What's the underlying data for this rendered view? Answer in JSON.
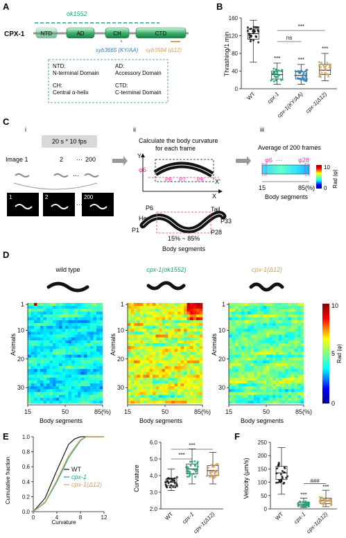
{
  "colors": {
    "wt": "#111111",
    "cpx1": "#1aa37a",
    "ky": "#2a7fb8",
    "d12": "#d1a25a",
    "magenta": "#e2339a",
    "domain_green": "#3bb36d"
  },
  "panels": {
    "A": "A",
    "B": "B",
    "C": "C",
    "D": "D",
    "E": "E",
    "F": "F"
  },
  "panelA": {
    "ok_label": "ok1552",
    "protein": "CPX-1",
    "domains": [
      "NTD",
      "AD",
      "CH",
      "CTD"
    ],
    "syb3665": "syb3665 (KY/AA)",
    "syb3584": "syb3584 (Δ12)",
    "legend": [
      {
        "abbr": "NTD:",
        "desc": "N-terminal Domain"
      },
      {
        "abbr": "AD:",
        "desc": "Accessory Domain"
      },
      {
        "abbr": "CH:",
        "desc": "Central α-helix"
      },
      {
        "abbr": "CTD:",
        "desc": "C-terminal Domain"
      }
    ]
  },
  "panelB": {
    "ylabel": "Thrashing/1 min",
    "yticks": [
      "0",
      "40",
      "80",
      "120",
      "160"
    ],
    "groups": [
      "WT",
      "cpx-1",
      "cpx-1(KY/AA)",
      "cpx-1(Δ12)"
    ],
    "stars": [
      "***",
      "***",
      "***"
    ],
    "ns": "ns",
    "top_star": "***"
  },
  "panelC": {
    "i_label": "i",
    "ii_label": "ii",
    "iii_label": "iii",
    "fps_box": "20 s * 10 fps",
    "image_labels": [
      "Image 1",
      "2",
      "···",
      "200"
    ],
    "frame_nums": [
      "1",
      "2",
      "200"
    ],
    "ii_title": "Calculate the body curvature for each frame",
    "axis_y": "Y",
    "axis_x": "X",
    "axis_xp": "X'",
    "phi6": "φ6",
    "p_labels": [
      "P6",
      "P7",
      "P8"
    ],
    "worm_labels": {
      "head": "Head",
      "tail": "Tail",
      "p1": "P1",
      "p6": "P6",
      "p28": "P28",
      "p33": "P33",
      "range": "15% ~ 85%"
    },
    "body_segments": "Body segments",
    "iii_title": "Average of 200 frames",
    "phi_ends": [
      "φ6",
      "···",
      "φ28"
    ],
    "iii_x": [
      "15",
      "85(%)"
    ],
    "cbar": [
      "10",
      "0"
    ],
    "cbar_label": "Rad (φ)"
  },
  "panelD": {
    "titles": [
      "wild type",
      "cpx-1(ok1552)",
      "cpx-1(Δ12)"
    ],
    "yticks": [
      "1",
      "10",
      "20",
      "30"
    ],
    "xticks": [
      "15",
      "50",
      "85(%)"
    ],
    "ylabel": "Animals",
    "xlabel": "Body segments",
    "cbar": [
      "10",
      "5",
      "0"
    ],
    "cbar_label": "Rad (φ)"
  },
  "panelE": {
    "cdf_ylabel": "Cumulative fraction",
    "cdf_xlabel": "Curvature",
    "cdf_yticks": [
      "1.0",
      "0.8",
      "0.6",
      "0.4",
      "0.2",
      "0.0"
    ],
    "cdf_xticks": [
      "0",
      "4",
      "8",
      "12"
    ],
    "legend": [
      "WT",
      "cpx-1",
      "cpx-1(Δ12)"
    ],
    "box_ylabel": "Curvature",
    "box_yticks": [
      "6.0",
      "5.0",
      "4.0",
      "3.0",
      "2.0"
    ],
    "groups": [
      "WT",
      "cpx-1",
      "cpx-1(Δ12)"
    ],
    "stars": [
      "***",
      "***"
    ]
  },
  "panelF": {
    "ylabel": "Velocity (μm/s)",
    "yticks": [
      "250",
      "200",
      "150",
      "100",
      "50",
      "0"
    ],
    "groups": [
      "WT",
      "cpx-1",
      "cpx-1(Δ12)"
    ],
    "stars": [
      "***",
      "***"
    ],
    "hash": "###"
  },
  "chart_data": [
    {
      "type": "box",
      "title": "",
      "ylabel": "Thrashing/1 min",
      "ylim": [
        0,
        160
      ],
      "categories": [
        "WT",
        "cpx-1",
        "cpx-1(KY/AA)",
        "cpx-1(Δ12)"
      ],
      "series": [
        {
          "median": 125,
          "q1": 112,
          "q3": 135,
          "min": 60,
          "max": 155
        },
        {
          "median": 32,
          "q1": 22,
          "q3": 40,
          "min": 10,
          "max": 58
        },
        {
          "median": 30,
          "q1": 22,
          "q3": 38,
          "min": 10,
          "max": 55
        },
        {
          "median": 42,
          "q1": 32,
          "q3": 55,
          "min": 18,
          "max": 80
        }
      ]
    },
    {
      "type": "line",
      "ylabel": "Cumulative fraction",
      "xlabel": "Curvature",
      "xlim": [
        0,
        12
      ],
      "ylim": [
        0,
        1
      ],
      "series": [
        {
          "name": "WT",
          "x": [
            0,
            2,
            4,
            6,
            7,
            8,
            12
          ],
          "y": [
            0,
            0.18,
            0.55,
            0.9,
            0.97,
            1.0,
            1.0
          ]
        },
        {
          "name": "cpx-1",
          "x": [
            0,
            2,
            4,
            6,
            8,
            9,
            12
          ],
          "y": [
            0,
            0.12,
            0.4,
            0.72,
            0.95,
            1.0,
            1.0
          ]
        },
        {
          "name": "cpx-1(Δ12)",
          "x": [
            0,
            2,
            4,
            6,
            8,
            9,
            12
          ],
          "y": [
            0,
            0.13,
            0.42,
            0.75,
            0.96,
            1.0,
            1.0
          ]
        }
      ]
    },
    {
      "type": "box",
      "ylabel": "Curvature",
      "ylim": [
        2,
        6
      ],
      "categories": [
        "WT",
        "cpx-1",
        "cpx-1(Δ12)"
      ],
      "series": [
        {
          "median": 3.6,
          "q1": 3.4,
          "q3": 3.8,
          "min": 3.1,
          "max": 4.4
        },
        {
          "median": 4.4,
          "q1": 4.1,
          "q3": 4.7,
          "min": 3.5,
          "max": 5.6
        },
        {
          "median": 4.3,
          "q1": 4.0,
          "q3": 4.6,
          "min": 3.5,
          "max": 5.4
        }
      ]
    },
    {
      "type": "box",
      "ylabel": "Velocity (μm/s)",
      "ylim": [
        0,
        250
      ],
      "categories": [
        "WT",
        "cpx-1",
        "cpx-1(Δ12)"
      ],
      "series": [
        {
          "median": 135,
          "q1": 110,
          "q3": 160,
          "min": 55,
          "max": 230
        },
        {
          "median": 18,
          "q1": 12,
          "q3": 25,
          "min": 5,
          "max": 40
        },
        {
          "median": 30,
          "q1": 20,
          "q3": 40,
          "min": 8,
          "max": 70
        }
      ]
    }
  ]
}
